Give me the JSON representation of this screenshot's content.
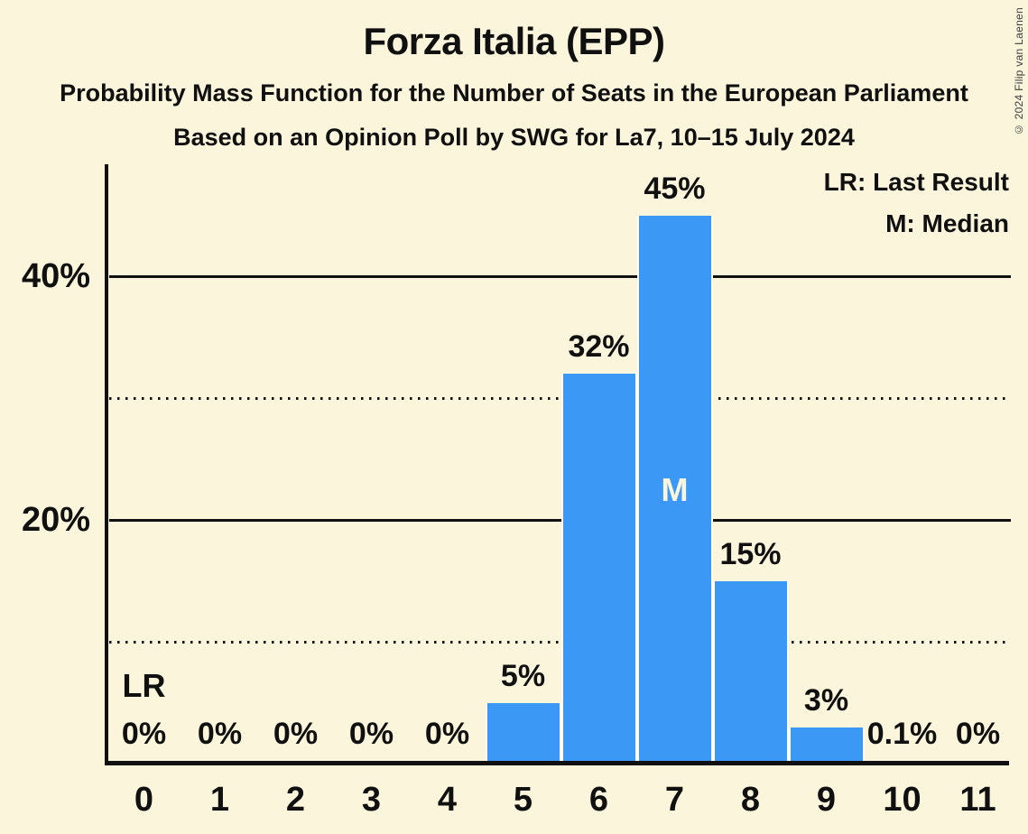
{
  "title": "Forza Italia (EPP)",
  "subtitle1": "Probability Mass Function for the Number of Seats in the European Parliament",
  "subtitle2": "Based on an Opinion Poll by SWG for La7, 10–15 July 2024",
  "copyright": "© 2024 Filip van Laenen",
  "legend": {
    "lr": "LR: Last Result",
    "m": "M: Median"
  },
  "colors": {
    "background": "#FBF5DC",
    "bar": "#3B99F5",
    "text": "#101010",
    "median_label": "#FBF5DC",
    "bar_separator": "#FFFFFF"
  },
  "chart_data": {
    "type": "bar",
    "title": "Forza Italia (EPP)",
    "categories": [
      "0",
      "1",
      "2",
      "3",
      "4",
      "5",
      "6",
      "7",
      "8",
      "9",
      "10",
      "11"
    ],
    "values": [
      0,
      0,
      0,
      0,
      0,
      5,
      32,
      45,
      15,
      3,
      0.1,
      0
    ],
    "bar_labels": [
      "0%",
      "0%",
      "0%",
      "0%",
      "0%",
      "5%",
      "32%",
      "45%",
      "15%",
      "3%",
      "0.1%",
      "0%"
    ],
    "ylim": [
      0,
      49.3
    ],
    "y_axis": {
      "ticks": [
        {
          "value": 20,
          "label": "20%",
          "style": "solid"
        },
        {
          "value": 40,
          "label": "40%",
          "style": "solid"
        }
      ],
      "dotted_gridlines": [
        10,
        30
      ]
    },
    "median": {
      "seat": "7",
      "marker": "M"
    },
    "last_result": {
      "seat": "0",
      "marker": "LR"
    },
    "legend_position": "top-right",
    "grid": true
  }
}
